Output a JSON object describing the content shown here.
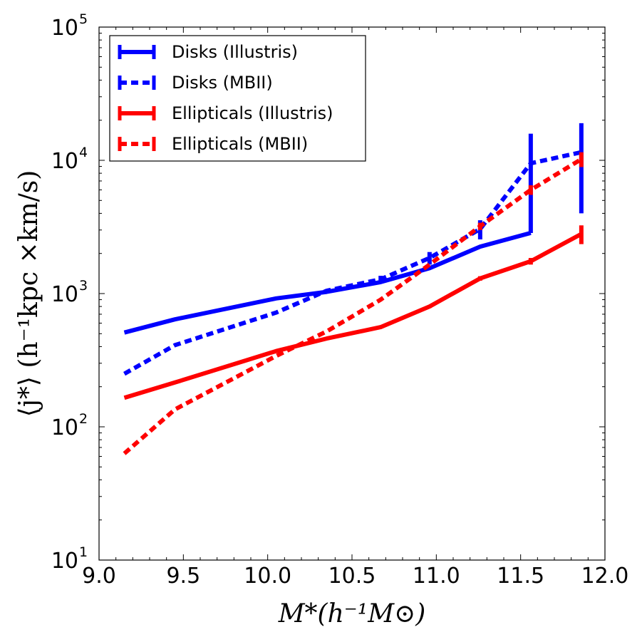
{
  "chart_data": {
    "type": "line",
    "title": "",
    "xlabel": "M*(h⁻¹M⊙)",
    "ylabel": "⟨j*⟩ (h⁻¹kpc ×km/s)",
    "xlim": [
      9.0,
      12.0
    ],
    "ylim": [
      10,
      100000
    ],
    "yscale": "log",
    "xticks": [
      {
        "value": 9.0,
        "label": "9.0"
      },
      {
        "value": 9.5,
        "label": "9.5"
      },
      {
        "value": 10.0,
        "label": "10.0"
      },
      {
        "value": 10.5,
        "label": "10.5"
      },
      {
        "value": 11.0,
        "label": "11.0"
      },
      {
        "value": 11.5,
        "label": "11.5"
      },
      {
        "value": 12.0,
        "label": "12.0"
      }
    ],
    "yticks": [
      {
        "value": 10,
        "base": "10",
        "exp": "1"
      },
      {
        "value": 100,
        "base": "10",
        "exp": "2"
      },
      {
        "value": 1000,
        "base": "10",
        "exp": "3"
      },
      {
        "value": 10000,
        "base": "10",
        "exp": "4"
      },
      {
        "value": 100000,
        "base": "10",
        "exp": "5"
      }
    ],
    "legend": {
      "position": "top-left"
    },
    "series": [
      {
        "name": "Disks (Illustris)",
        "color": "#0000ff",
        "style": "solid",
        "x": [
          9.15,
          9.45,
          10.05,
          10.35,
          10.67,
          10.96,
          11.26,
          11.56
        ],
        "y": [
          510,
          640,
          920,
          1030,
          1220,
          1550,
          2250,
          2850
        ],
        "err_low": [
          0,
          0,
          0,
          0,
          0,
          0,
          0,
          0
        ],
        "err_high": [
          0,
          0,
          0,
          0,
          0,
          0,
          0,
          13000
        ]
      },
      {
        "name": "Disks (MBII)",
        "color": "#0000ff",
        "style": "dotted",
        "x": [
          9.15,
          9.45,
          10.05,
          10.35,
          10.67,
          10.96,
          11.26,
          11.56,
          11.86
        ],
        "y": [
          250,
          410,
          720,
          1050,
          1280,
          1850,
          3050,
          9500,
          11500
        ],
        "err_low": [
          0,
          0,
          0,
          0,
          80,
          200,
          500,
          0,
          7500
        ],
        "err_high": [
          0,
          0,
          0,
          0,
          80,
          200,
          500,
          0,
          7500
        ]
      },
      {
        "name": "Ellipticals (Illustris)",
        "color": "#ff0000",
        "style": "solid",
        "x": [
          9.15,
          9.45,
          10.05,
          10.35,
          10.67,
          10.96,
          11.26,
          11.56,
          11.86
        ],
        "y": [
          165,
          215,
          370,
          460,
          560,
          800,
          1300,
          1750,
          2800
        ],
        "err_low": [
          0,
          0,
          0,
          0,
          0,
          20,
          50,
          100,
          450
        ],
        "err_high": [
          0,
          0,
          0,
          0,
          0,
          20,
          50,
          100,
          450
        ]
      },
      {
        "name": "Ellipticals (MBII)",
        "color": "#ff0000",
        "style": "dotted",
        "x": [
          9.15,
          9.45,
          10.05,
          10.35,
          10.67,
          10.96,
          11.26,
          11.56,
          11.86
        ],
        "y": [
          63,
          135,
          340,
          520,
          900,
          1650,
          3200,
          6000,
          10200
        ],
        "err_low": [
          0,
          0,
          0,
          0,
          0,
          0,
          200,
          500,
          1300
        ],
        "err_high": [
          0,
          0,
          0,
          0,
          0,
          0,
          200,
          500,
          1300
        ]
      }
    ]
  }
}
